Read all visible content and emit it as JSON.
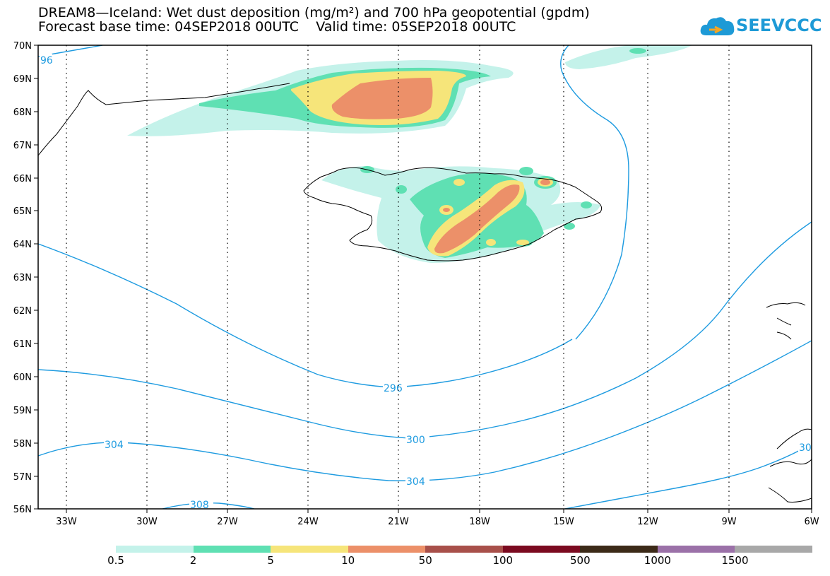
{
  "header": {
    "title_line1": "DREAM8—Iceland: Wet dust deposition (mg/m²) and 700 hPa geopotential (gpdm)",
    "title_line2": "Forecast base time: 04SEP2018 00UTC    Valid time: 05SEP2018 00UTC",
    "logo_text": "SEEVCCC"
  },
  "map": {
    "lat_labels": [
      "70N",
      "69N",
      "68N",
      "67N",
      "66N",
      "65N",
      "64N",
      "63N",
      "62N",
      "61N",
      "60N",
      "59N",
      "58N",
      "57N",
      "56N"
    ],
    "lon_labels": [
      "33W",
      "30W",
      "27W",
      "24W",
      "21W",
      "18W",
      "15W",
      "12W",
      "9W",
      "6W"
    ],
    "contour_labels": [
      "96",
      "296",
      "300",
      "304",
      "304",
      "308",
      "30"
    ],
    "contour_color": "#1e9be0",
    "coast_color": "#000000"
  },
  "legend": {
    "labels": [
      "0.5",
      "2",
      "5",
      "10",
      "50",
      "100",
      "500",
      "1000",
      "1500"
    ],
    "colors": [
      "#c4f2ea",
      "#5fe0b3",
      "#f6e57a",
      "#ec9069",
      "#a8504a",
      "#7b0a20",
      "#3c2a18",
      "#9b71a8",
      "#a8a8a8"
    ]
  }
}
